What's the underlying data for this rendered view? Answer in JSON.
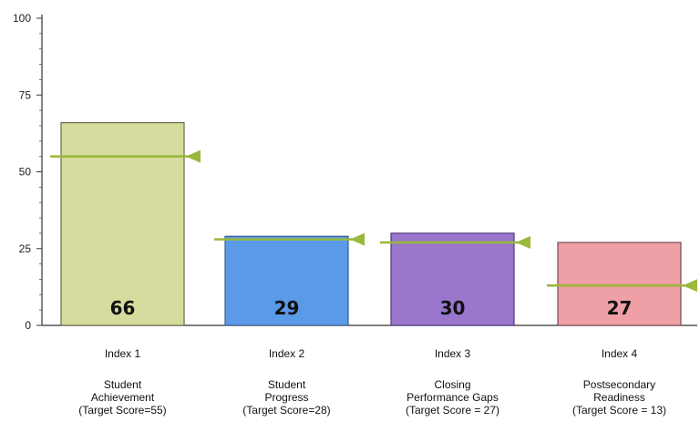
{
  "chart_data": {
    "type": "bar",
    "categories": [
      "Index 1",
      "Index 2",
      "Index 3",
      "Index 4"
    ],
    "category_sublabels": [
      [
        "Student",
        "Achievement",
        "(Target Score=55)"
      ],
      [
        "Student",
        "Progress",
        "(Target Score=28)"
      ],
      [
        "Closing",
        "Performance Gaps",
        "(Target Score = 27)"
      ],
      [
        "Postsecondary",
        "Readiness",
        "(Target Score = 13)"
      ]
    ],
    "values": [
      66,
      29,
      30,
      27
    ],
    "value_labels": [
      "66",
      "29",
      "30",
      "27"
    ],
    "targets": [
      55,
      28,
      27,
      13
    ],
    "bar_colors": [
      "#d6dc9e",
      "#5b9ae8",
      "#9a76cc",
      "#ef9fa6"
    ],
    "bar_borders": [
      "#6a6a4a",
      "#3a5a90",
      "#4e3a78",
      "#7a4a50"
    ],
    "target_color": "#9ab83a",
    "ylim": [
      0,
      100
    ],
    "yticks": [
      0,
      25,
      50,
      75,
      100
    ],
    "ytick_labels": [
      "0",
      "25",
      "50",
      "75",
      "100"
    ],
    "minor_tick_step": 5,
    "grid": false,
    "title": "",
    "xlabel": "",
    "ylabel": ""
  }
}
